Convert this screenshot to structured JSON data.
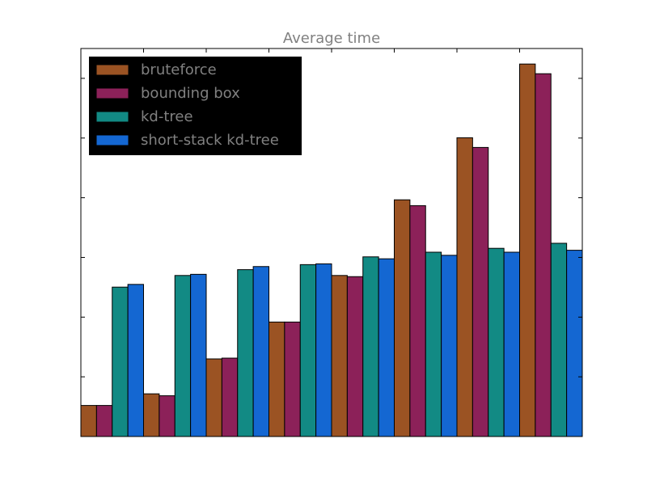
{
  "chart_data": {
    "type": "bar",
    "title": "Average time",
    "xlabel": "",
    "ylabel": "",
    "ylim": [
      0,
      100
    ],
    "categories": [
      "",
      "",
      "",
      "",
      "",
      "",
      "",
      ""
    ],
    "series": [
      {
        "name": "bruteforce",
        "color": "#9b5323",
        "values": [
          8,
          11,
          20,
          29.5,
          41.5,
          61,
          77,
          96
        ]
      },
      {
        "name": "bounding box",
        "color": "#8c2159",
        "values": [
          8,
          10.5,
          20.2,
          29.5,
          41.2,
          59.5,
          74.5,
          93.5
        ]
      },
      {
        "name": "kd-tree",
        "color": "#128a84",
        "values": [
          38.5,
          41.5,
          43,
          44.3,
          46.3,
          47.5,
          48.5,
          49.8
        ]
      },
      {
        "name": "short-stack kd-tree",
        "color": "#1467d2",
        "values": [
          39.2,
          41.8,
          43.8,
          44.5,
          45.8,
          46.7,
          47.5,
          48
        ]
      }
    ],
    "legend_position": "top-left",
    "grid": false,
    "title_color": "#808080",
    "legend_bg": "#000000",
    "legend_text_color": "#808080"
  }
}
